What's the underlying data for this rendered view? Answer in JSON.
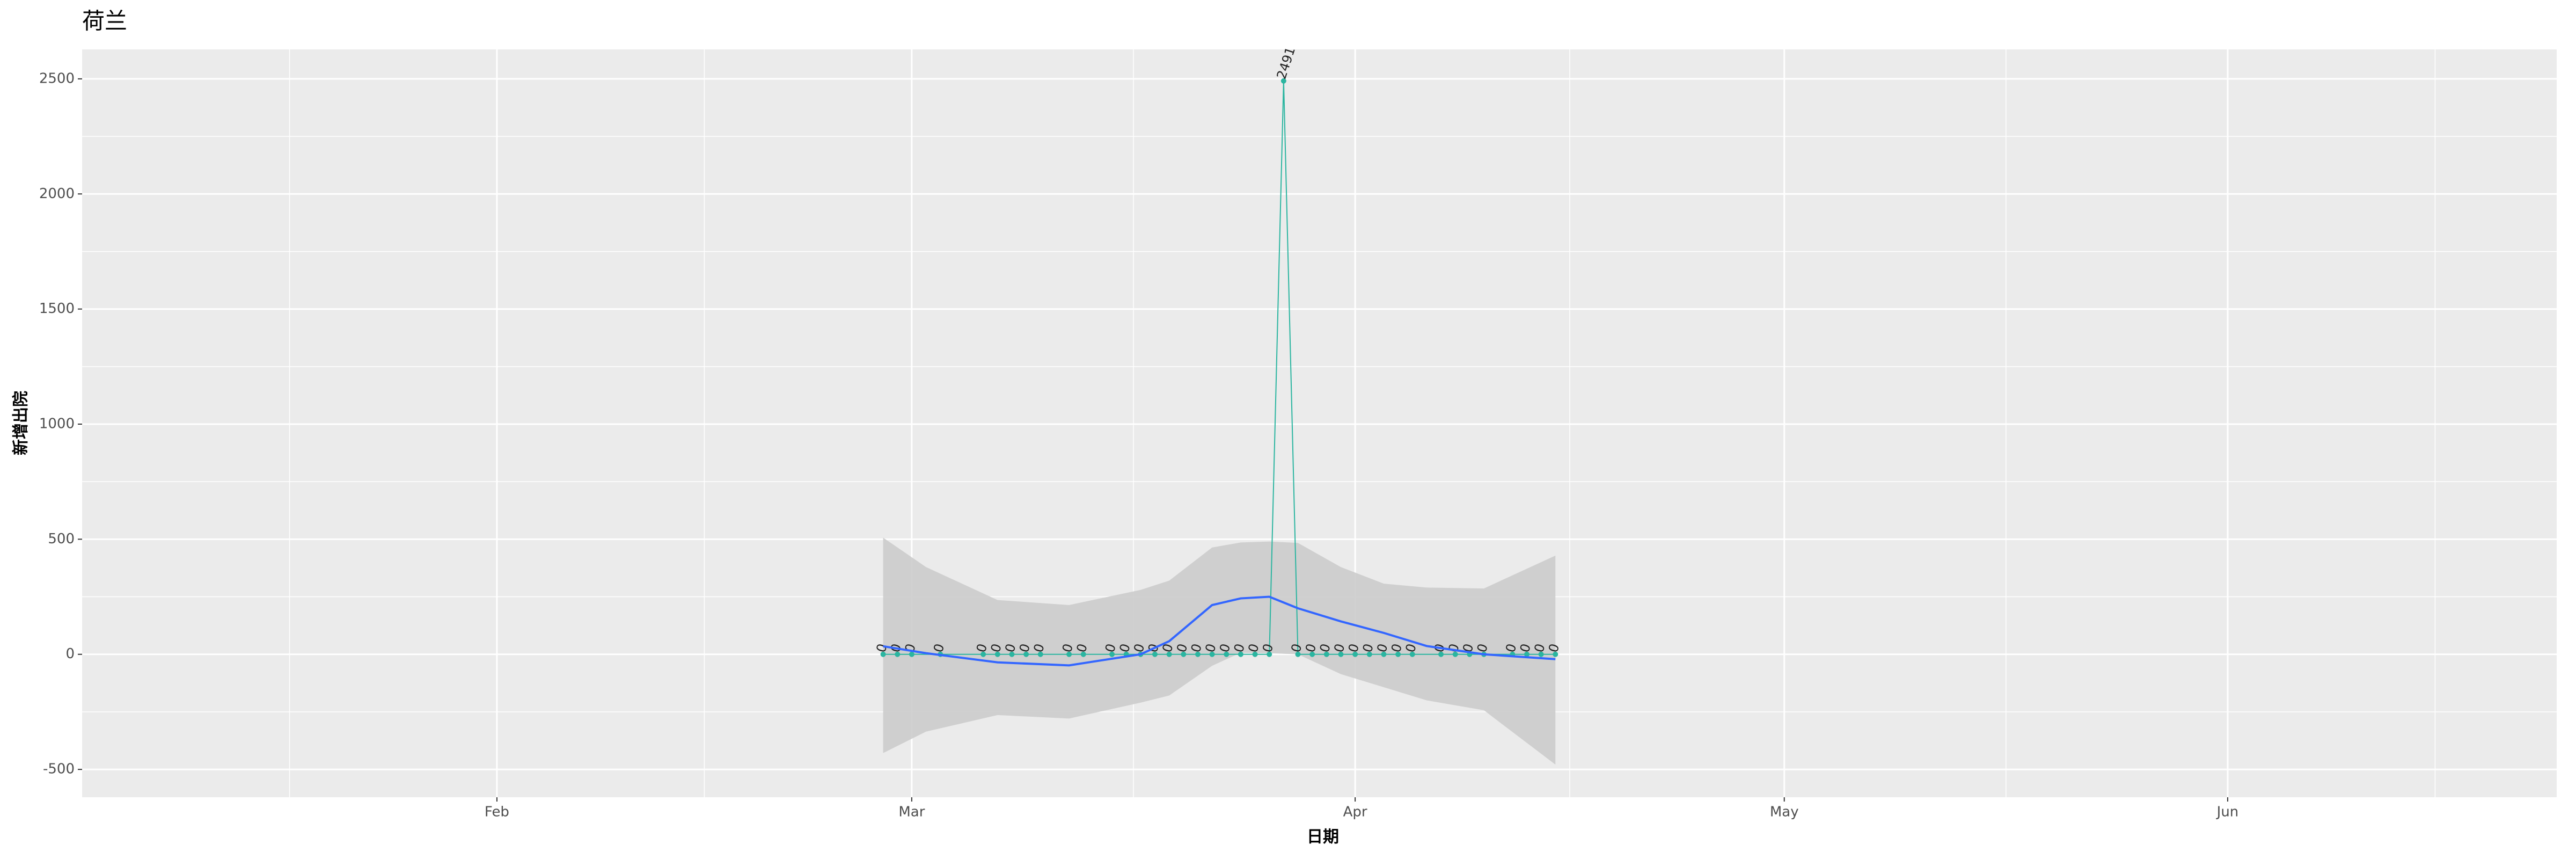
{
  "chart_data": {
    "type": "line",
    "title": "荷兰",
    "xlabel": "日期",
    "ylabel": "新增出院",
    "x": [
      "02-28",
      "02-29",
      "03-01",
      "03-03",
      "03-06",
      "03-07",
      "03-08",
      "03-09",
      "03-10",
      "03-12",
      "03-13",
      "03-15",
      "03-16",
      "03-17",
      "03-18",
      "03-19",
      "03-20",
      "03-21",
      "03-22",
      "03-23",
      "03-24",
      "03-25",
      "03-26",
      "03-27",
      "03-28",
      "03-29",
      "03-30",
      "03-31",
      "04-01",
      "04-02",
      "04-03",
      "04-04",
      "04-05",
      "04-07",
      "04-08",
      "04-09",
      "04-10",
      "04-12",
      "04-13",
      "04-14",
      "04-15"
    ],
    "series": [
      {
        "color": "#2bb5a0",
        "values": [
          0,
          0,
          0,
          0,
          0,
          0,
          0,
          0,
          0,
          0,
          0,
          0,
          0,
          0,
          0,
          0,
          0,
          0,
          0,
          0,
          0,
          0,
          0,
          2491,
          0,
          0,
          0,
          0,
          0,
          0,
          0,
          0,
          0,
          0,
          0,
          0,
          0,
          0,
          0,
          0,
          0
        ]
      }
    ],
    "smooth": {
      "color": "#3366ff",
      "band_color": "#cccccc",
      "x": [
        "02-28",
        "03-02",
        "03-07",
        "03-12",
        "03-17",
        "03-19",
        "03-22",
        "03-24",
        "03-26",
        "03-28",
        "03-31",
        "04-03",
        "04-06",
        "04-10",
        "04-15"
      ],
      "values": [
        35,
        5,
        -35,
        -48,
        0,
        57,
        214,
        243,
        250,
        200,
        143,
        93,
        36,
        0,
        -21
      ],
      "upper": [
        507,
        379,
        236,
        214,
        280,
        320,
        464,
        486,
        490,
        484,
        379,
        307,
        290,
        286,
        429
      ],
      "lower": [
        -429,
        -336,
        -264,
        -279,
        -210,
        -179,
        -50,
        7,
        5,
        0,
        -86,
        -143,
        -200,
        -243,
        -479
      ]
    },
    "xlim": [
      "01-03",
      "06-24"
    ],
    "xticks": [
      {
        "value": "02-01",
        "label": "Feb"
      },
      {
        "value": "03-01",
        "label": "Mar"
      },
      {
        "value": "04-01",
        "label": "Apr"
      },
      {
        "value": "05-01",
        "label": "May"
      },
      {
        "value": "06-01",
        "label": "Jun"
      }
    ],
    "ylim": [
      -621,
      2628
    ],
    "yticks": [
      -500,
      0,
      500,
      1000,
      1500,
      2000,
      2500
    ],
    "grid": true
  }
}
